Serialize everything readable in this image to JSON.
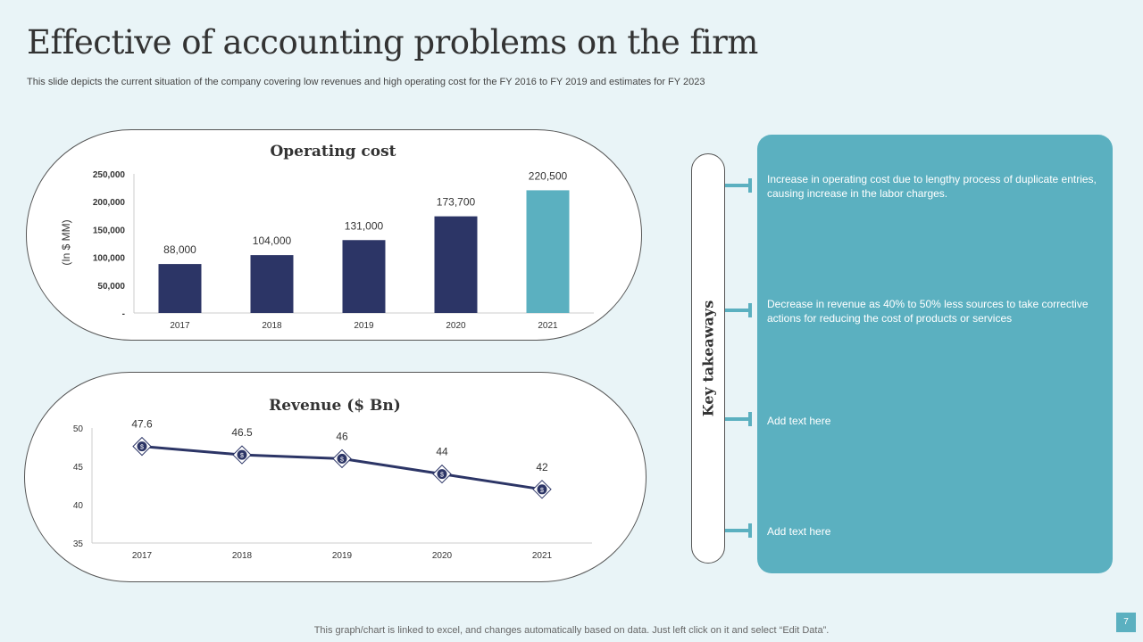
{
  "title": "Effective of accounting problems on the firm",
  "subtitle": "This slide depicts the current situation of the company covering low revenues and high operating cost for the FY  2016 to FY  2019 and estimates for FY 2023",
  "chart_data": [
    {
      "type": "bar",
      "title": "Operating cost",
      "ylabel": "(In $ MM)",
      "categories": [
        "2017",
        "2018",
        "2019",
        "2020",
        "2021"
      ],
      "values": [
        88000,
        104000,
        131000,
        173700,
        220500
      ],
      "data_labels": [
        "88,000",
        "104,000",
        "131,000",
        "173,700",
        "220,500"
      ],
      "ylim": [
        0,
        250000
      ],
      "yticks": [
        "-",
        "50,000",
        "100,000",
        "150,000",
        "200,000",
        "250,000"
      ],
      "colors": [
        "#2c3566",
        "#2c3566",
        "#2c3566",
        "#2c3566",
        "#5bb0c0"
      ]
    },
    {
      "type": "line",
      "title": "Revenue ($ Bn)",
      "categories": [
        "2017",
        "2018",
        "2019",
        "2020",
        "2021"
      ],
      "values": [
        47.6,
        46.5,
        46,
        44,
        42
      ],
      "data_labels": [
        "47.6",
        "46.5",
        "46",
        "44",
        "42"
      ],
      "ylim": [
        35,
        50
      ],
      "yticks": [
        "35",
        "40",
        "45",
        "50"
      ],
      "color": "#2c3566",
      "marker": "dollar-diamond"
    }
  ],
  "takeaways": {
    "label": "Key takeaways",
    "items": [
      "Increase in operating cost due to lengthy process of duplicate entries, causing increase in the labor charges.",
      "Decrease in revenue  as 40%  to 50%  less sources to take corrective  actions for reducing  the  cost of products or services",
      "Add text here",
      "Add text here"
    ]
  },
  "footer": "This graph/chart is linked to excel,  and changes automatically based on data. Just left click on it and select “Edit Data”.",
  "page_number": "7"
}
